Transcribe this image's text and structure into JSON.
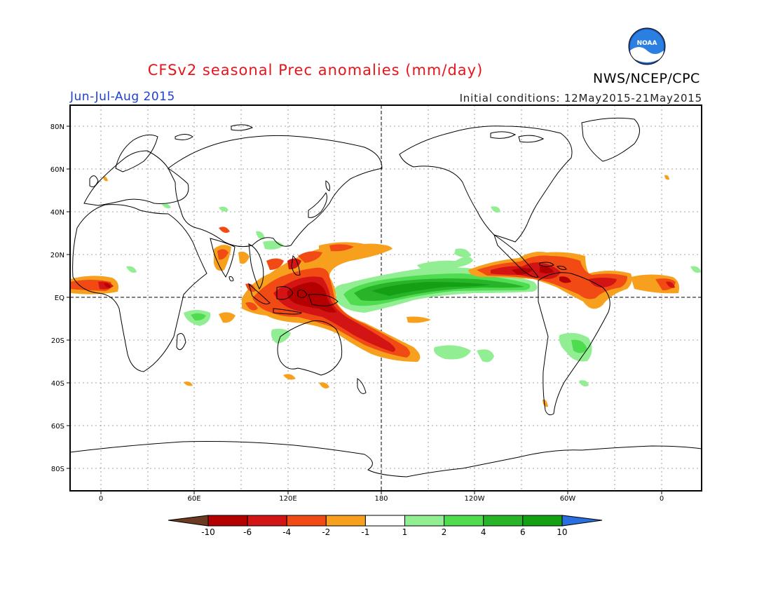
{
  "title": "CFSv2 seasonal Prec anomalies (mm/day)",
  "organization": "NWS/NCEP/CPC",
  "logo_text": "NOAA",
  "period": "Jun-Jul-Aug 2015",
  "initial_conditions": "Initial conditions: 12May2015-21May2015",
  "lat_labels": [
    "80N",
    "60N",
    "40N",
    "20N",
    "EQ",
    "20S",
    "40S",
    "60S",
    "80S"
  ],
  "lon_labels": [
    "0",
    "60E",
    "120E",
    "180",
    "120W",
    "60W",
    "0"
  ],
  "colorbar": {
    "labels": [
      "-10",
      "-6",
      "-4",
      "-2",
      "-1",
      "1",
      "2",
      "4",
      "6",
      "10"
    ],
    "bins": [
      {
        "range": "< -10",
        "color": "#6b3a22"
      },
      {
        "range": "-10 to -6",
        "color": "#b40000"
      },
      {
        "range": "-6 to -4",
        "color": "#d21414"
      },
      {
        "range": "-4 to -2",
        "color": "#f24a14"
      },
      {
        "range": "-2 to -1",
        "color": "#f7a01e"
      },
      {
        "range": "-1 to 1",
        "color": "#ffffff"
      },
      {
        "range": "1 to 2",
        "color": "#92ee92"
      },
      {
        "range": "2 to 4",
        "color": "#50dc50"
      },
      {
        "range": "4 to 6",
        "color": "#28b428"
      },
      {
        "range": "6 to 10",
        "color": "#14a014"
      },
      {
        "range": "> 10",
        "color": "#2a6ee0"
      }
    ]
  }
}
